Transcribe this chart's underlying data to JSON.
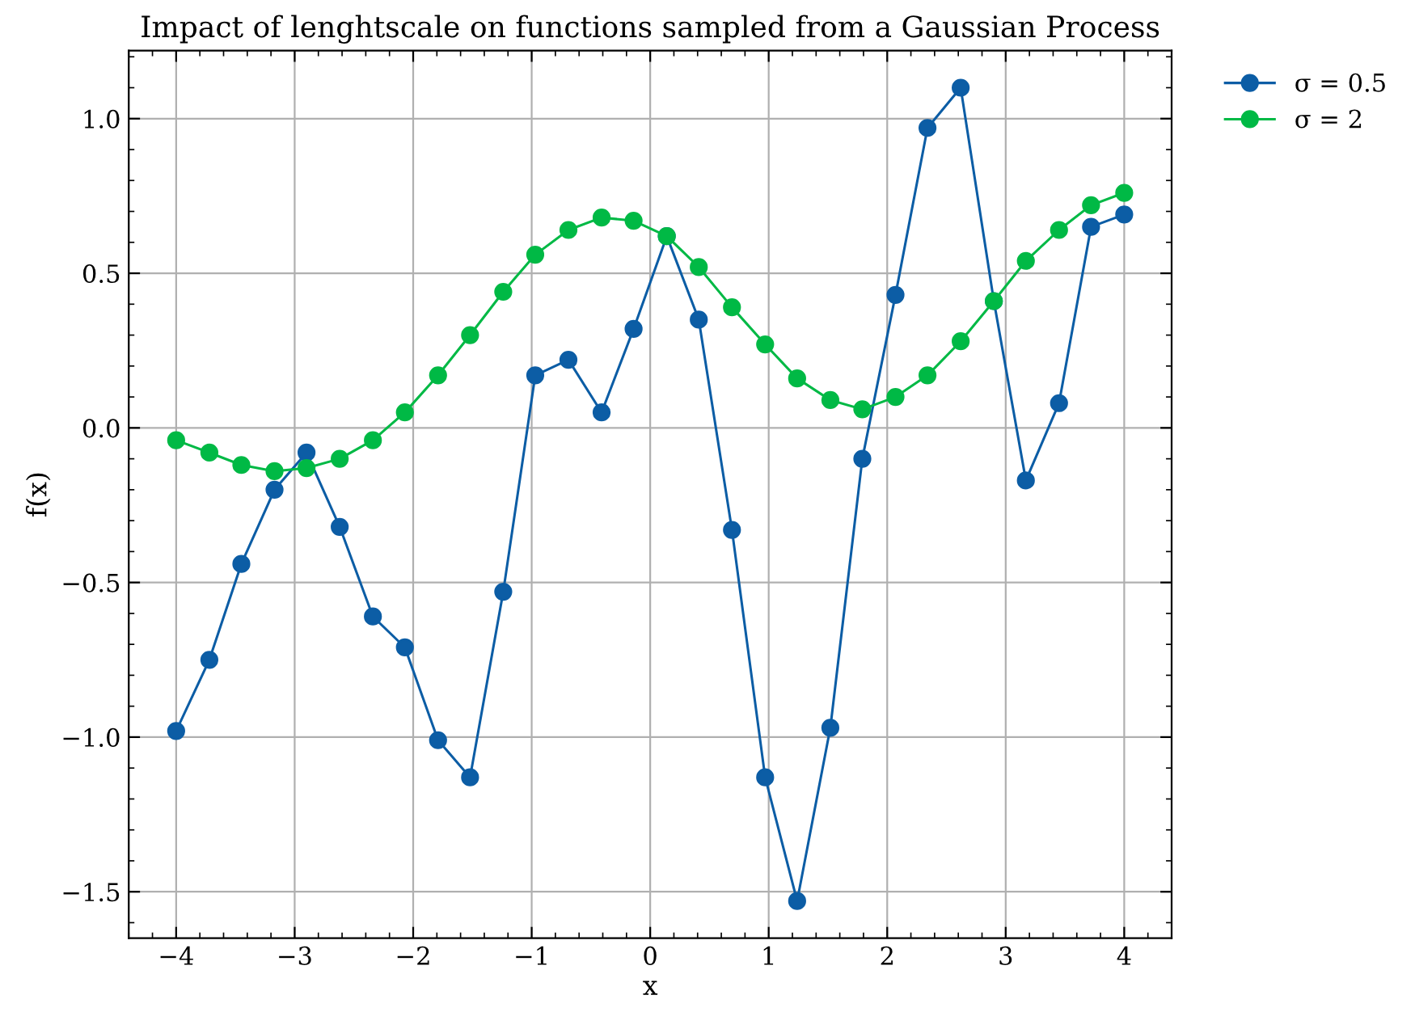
{
  "chart_data": {
    "type": "line",
    "title": "Impact of lenghtscale on functions sampled from a Gaussian Process",
    "xlabel": "x",
    "ylabel": "f(x)",
    "x": [
      -4.0,
      -3.72,
      -3.45,
      -3.17,
      -2.9,
      -2.62,
      -2.34,
      -2.07,
      -1.79,
      -1.52,
      -1.24,
      -0.97,
      -0.69,
      -0.41,
      -0.14,
      0.14,
      0.41,
      0.69,
      0.97,
      1.24,
      1.52,
      1.79,
      2.07,
      2.34,
      2.62,
      2.9,
      3.17,
      3.45,
      3.72,
      4.0
    ],
    "series": [
      {
        "name": "σ = 0.5",
        "color": "#0c5da5",
        "values": [
          -0.98,
          -0.75,
          -0.44,
          -0.2,
          -0.08,
          -0.32,
          -0.61,
          -0.71,
          -1.01,
          -1.13,
          -0.53,
          0.17,
          0.22,
          0.05,
          0.32,
          0.62,
          0.35,
          -0.33,
          -1.13,
          -1.53,
          -0.97,
          -0.1,
          0.43,
          0.97,
          1.1,
          0.41,
          -0.17,
          0.08,
          0.65,
          0.69
        ]
      },
      {
        "name": "σ = 2",
        "color": "#00b945",
        "values": [
          -0.04,
          -0.08,
          -0.12,
          -0.14,
          -0.13,
          -0.1,
          -0.04,
          0.05,
          0.17,
          0.3,
          0.44,
          0.56,
          0.64,
          0.68,
          0.67,
          0.62,
          0.52,
          0.39,
          0.27,
          0.16,
          0.09,
          0.06,
          0.1,
          0.17,
          0.28,
          0.41,
          0.54,
          0.64,
          0.72,
          0.76
        ]
      }
    ],
    "xlim": [
      -4.4,
      4.4
    ],
    "ylim": [
      -1.65,
      1.22
    ],
    "xticks": [
      {
        "value": -4,
        "label": "−4"
      },
      {
        "value": -3,
        "label": "−3"
      },
      {
        "value": -2,
        "label": "−2"
      },
      {
        "value": -1,
        "label": "−1"
      },
      0,
      1,
      2,
      3,
      4
    ],
    "yticks": [
      {
        "value": -1.5,
        "label": "−1.5"
      },
      {
        "value": -1.0,
        "label": "−1.0"
      },
      {
        "value": -0.5,
        "label": "−0.5"
      },
      {
        "value": 0.0,
        "label": "0.0"
      },
      {
        "value": 0.5,
        "label": "0.5"
      },
      {
        "value": 1.0,
        "label": "1.0"
      }
    ],
    "grid": true,
    "legend": "top right",
    "marker": "circle",
    "line_style": "solid"
  }
}
